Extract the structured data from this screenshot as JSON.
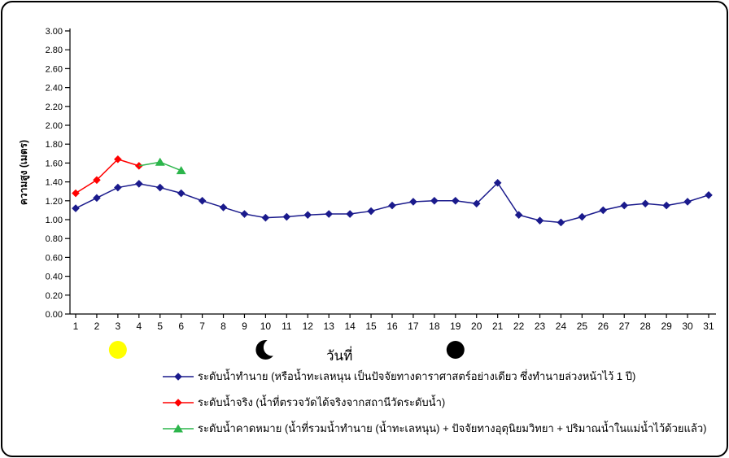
{
  "chart_data": {
    "type": "line",
    "title": "",
    "xlabel": "วันที่",
    "ylabel": "ความสูง (เมตร)",
    "ylim": [
      0.0,
      3.0
    ],
    "ytick_step": 0.2,
    "grid": false,
    "days": [
      1,
      2,
      3,
      4,
      5,
      6,
      7,
      8,
      9,
      10,
      11,
      12,
      13,
      14,
      15,
      16,
      17,
      18,
      19,
      20,
      21,
      22,
      23,
      24,
      25,
      26,
      27,
      28,
      29,
      30,
      31
    ],
    "series": [
      {
        "name": "ระดับน้ำทำนาย",
        "color": "#1A1A8C",
        "marker": "diamond",
        "x": [
          1,
          2,
          3,
          4,
          5,
          6,
          7,
          8,
          9,
          10,
          11,
          12,
          13,
          14,
          15,
          16,
          17,
          18,
          19,
          20,
          21,
          22,
          23,
          24,
          25,
          26,
          27,
          28,
          29,
          30,
          31
        ],
        "values": [
          1.12,
          1.23,
          1.34,
          1.38,
          1.34,
          1.28,
          1.2,
          1.13,
          1.06,
          1.02,
          1.03,
          1.05,
          1.06,
          1.06,
          1.09,
          1.15,
          1.19,
          1.2,
          1.2,
          1.17,
          1.39,
          1.05,
          0.99,
          0.97,
          1.03,
          1.1,
          1.15,
          1.17,
          1.15,
          1.19,
          1.26
        ]
      },
      {
        "name": "ระดับน้ำจริง",
        "color": "#FF0000",
        "marker": "diamond",
        "x": [
          1,
          2,
          3,
          4
        ],
        "values": [
          1.28,
          1.42,
          1.64,
          1.57
        ]
      },
      {
        "name": "ระดับน้ำคาดหมาย",
        "color": "#2CB54B",
        "marker": "triangle",
        "x": [
          4,
          5,
          6
        ],
        "values": [
          1.57,
          1.61,
          1.52
        ],
        "marker_visible": [
          false,
          true,
          true
        ]
      }
    ],
    "moon_annotations": [
      {
        "name": "full-moon",
        "day": 3,
        "fill": "#FFFF00"
      },
      {
        "name": "crescent-moon",
        "day": 10,
        "fill": "#000000"
      },
      {
        "name": "new-moon",
        "day": 19,
        "fill": "#000000"
      }
    ],
    "axis_color": "#000000",
    "tick_label_color": "#000000"
  },
  "legend": {
    "items": [
      {
        "label": "ระดับน้ำทำนาย  (หรือน้ำทะเลหนุน  เป็นปัจจัยทางดาราศาสตร์อย่างเดียว ซึ่งทำนายล่วงหน้าไว้ 1 ปี)",
        "color": "#1A1A8C",
        "marker": "diamond"
      },
      {
        "label": "ระดับน้ำจริง (น้ำที่ตรวจวัดได้จริงจากสถานีวัดระดับน้ำ)",
        "color": "#FF0000",
        "marker": "diamond"
      },
      {
        "label": "ระดับน้ำคาดหมาย (น้ำที่รวมน้ำทำนาย (น้ำทะเลหนุน) + ปัจจัยทางอุตุนิยมวิทยา + ปริมาณน้ำในแม่น้ำไว้ด้วยแล้ว)",
        "color": "#2CB54B",
        "marker": "triangle"
      }
    ]
  }
}
